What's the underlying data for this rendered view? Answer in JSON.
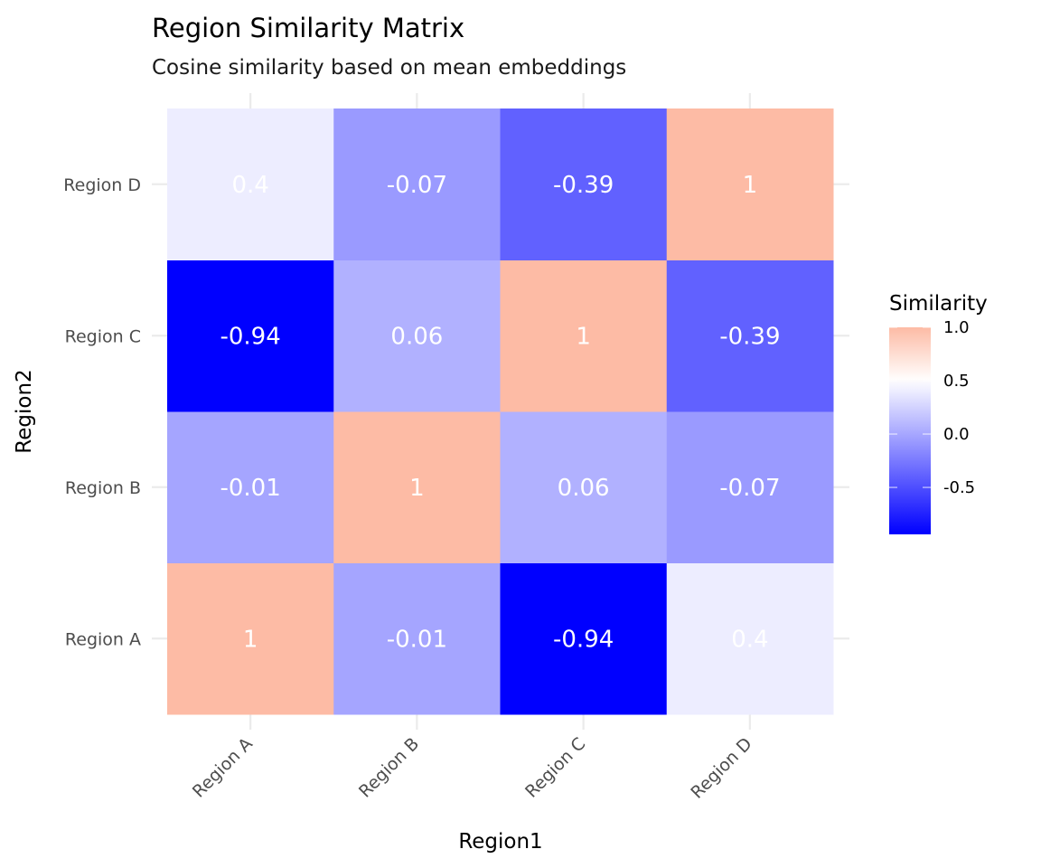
{
  "chart_data": {
    "type": "heatmap",
    "title": "Region Similarity Matrix",
    "subtitle": "Cosine similarity based on mean embeddings",
    "xlabel": "Region1",
    "ylabel": "Region2",
    "x_categories": [
      "Region A",
      "Region B",
      "Region C",
      "Region D"
    ],
    "y_categories": [
      "Region A",
      "Region B",
      "Region C",
      "Region D"
    ],
    "values": [
      {
        "x": "Region A",
        "y": "Region A",
        "value": 1,
        "label": "1"
      },
      {
        "x": "Region B",
        "y": "Region A",
        "value": -0.01,
        "label": "-0.01"
      },
      {
        "x": "Region C",
        "y": "Region A",
        "value": -0.94,
        "label": "-0.94"
      },
      {
        "x": "Region D",
        "y": "Region A",
        "value": 0.4,
        "label": "0.4"
      },
      {
        "x": "Region A",
        "y": "Region B",
        "value": -0.01,
        "label": "-0.01"
      },
      {
        "x": "Region B",
        "y": "Region B",
        "value": 1,
        "label": "1"
      },
      {
        "x": "Region C",
        "y": "Region B",
        "value": 0.06,
        "label": "0.06"
      },
      {
        "x": "Region D",
        "y": "Region B",
        "value": -0.07,
        "label": "-0.07"
      },
      {
        "x": "Region A",
        "y": "Region C",
        "value": -0.94,
        "label": "-0.94"
      },
      {
        "x": "Region B",
        "y": "Region C",
        "value": 0.06,
        "label": "0.06"
      },
      {
        "x": "Region C",
        "y": "Region C",
        "value": 1,
        "label": "1"
      },
      {
        "x": "Region D",
        "y": "Region C",
        "value": -0.39,
        "label": "-0.39"
      },
      {
        "x": "Region A",
        "y": "Region D",
        "value": 0.4,
        "label": "0.4"
      },
      {
        "x": "Region B",
        "y": "Region D",
        "value": -0.07,
        "label": "-0.07"
      },
      {
        "x": "Region C",
        "y": "Region D",
        "value": -0.39,
        "label": "-0.39"
      },
      {
        "x": "Region D",
        "y": "Region D",
        "value": 1,
        "label": "1"
      }
    ],
    "color_scale": {
      "low": "#0000FF",
      "mid": "#FFFFFF",
      "high": "#FDBBA5",
      "midpoint": 0.5,
      "range": [
        -0.94,
        1.0
      ]
    },
    "legend": {
      "title": "Similarity",
      "ticks": [
        1.0,
        0.5,
        0.0,
        -0.5
      ],
      "tick_labels": [
        "1.0",
        "0.5",
        "0.0",
        "-0.5"
      ],
      "position": "right"
    },
    "grid": true
  }
}
